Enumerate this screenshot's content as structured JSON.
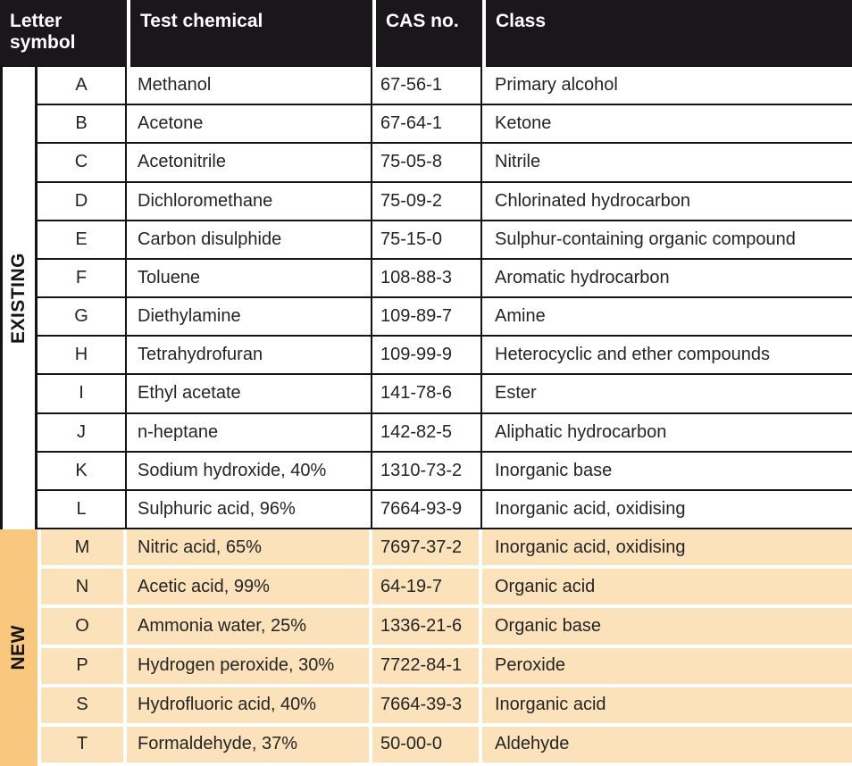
{
  "header": {
    "letter_symbol": "Letter symbol",
    "test_chemical": "Test chemical",
    "cas_no": "CAS no.",
    "class": "Class"
  },
  "groups": [
    {
      "label": "EXISTING",
      "rows": [
        {
          "letter": "A",
          "chemical": "Methanol",
          "cas": "67-56-1",
          "class": "Primary alcohol"
        },
        {
          "letter": "B",
          "chemical": "Acetone",
          "cas": "67-64-1",
          "class": "Ketone"
        },
        {
          "letter": "C",
          "chemical": "Acetonitrile",
          "cas": "75-05-8",
          "class": "Nitrile"
        },
        {
          "letter": "D",
          "chemical": "Dichloromethane",
          "cas": "75-09-2",
          "class": "Chlorinated hydrocarbon"
        },
        {
          "letter": "E",
          "chemical": "Carbon disulphide",
          "cas": "75-15-0",
          "class": "Sulphur-containing organic compound"
        },
        {
          "letter": "F",
          "chemical": "Toluene",
          "cas": "108-88-3",
          "class": "Aromatic hydrocarbon"
        },
        {
          "letter": "G",
          "chemical": "Diethylamine",
          "cas": "109-89-7",
          "class": "Amine"
        },
        {
          "letter": "H",
          "chemical": "Tetrahydrofuran",
          "cas": "109-99-9",
          "class": "Heterocyclic and ether compounds"
        },
        {
          "letter": "I",
          "chemical": "Ethyl acetate",
          "cas": "141-78-6",
          "class": "Ester"
        },
        {
          "letter": "J",
          "chemical": "n-heptane",
          "cas": "142-82-5",
          "class": "Aliphatic hydrocarbon"
        },
        {
          "letter": "K",
          "chemical": "Sodium hydroxide, 40%",
          "cas": "1310-73-2",
          "class": "Inorganic base"
        },
        {
          "letter": "L",
          "chemical": "Sulphuric acid, 96%",
          "cas": "7664-93-9",
          "class": "Inorganic acid, oxidising"
        }
      ]
    },
    {
      "label": "NEW",
      "rows": [
        {
          "letter": "M",
          "chemical": "Nitric acid, 65%",
          "cas": "7697-37-2",
          "class": "Inorganic acid, oxidising"
        },
        {
          "letter": "N",
          "chemical": "Acetic acid, 99%",
          "cas": "64-19-7",
          "class": "Organic acid"
        },
        {
          "letter": "O",
          "chemical": "Ammonia water, 25%",
          "cas": "1336-21-6",
          "class": "Organic base"
        },
        {
          "letter": "P",
          "chemical": "Hydrogen peroxide, 30%",
          "cas": "7722-84-1",
          "class": "Peroxide"
        },
        {
          "letter": "S",
          "chemical": "Hydrofluoric acid, 40%",
          "cas": "7664-39-3",
          "class": "Inorganic acid"
        },
        {
          "letter": "T",
          "chemical": "Formaldehyde, 37%",
          "cas": "50-00-0",
          "class": "Aldehyde"
        }
      ]
    }
  ],
  "colors": {
    "header_bg": "#1a171b",
    "rule_black": "#141414",
    "new_group_bg": "#f9c87e",
    "new_row_bg": "#fce2ba",
    "separator_white": "#ffffff"
  }
}
